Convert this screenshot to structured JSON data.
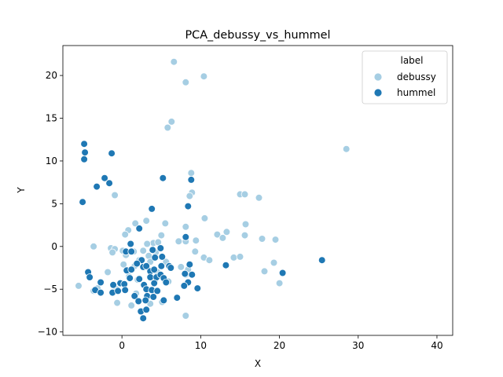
{
  "chart_data": {
    "type": "scatter",
    "title": "PCA_debussy_vs_hummel",
    "xlabel": "X",
    "ylabel": "Y",
    "xlim": [
      -7.5,
      42
    ],
    "ylim": [
      -10.4,
      23.5
    ],
    "xticks": [
      0,
      10,
      20,
      30,
      40
    ],
    "yticks": [
      -10,
      -5,
      0,
      5,
      10,
      15,
      20
    ],
    "grid": false,
    "legend": {
      "title": "label",
      "placement": "top-right"
    },
    "series": [
      {
        "name": "debussy",
        "color": "#a6cee3",
        "points": [
          [
            6.6,
            21.6
          ],
          [
            8.1,
            19.2
          ],
          [
            10.4,
            19.9
          ],
          [
            6.3,
            14.6
          ],
          [
            5.8,
            13.9
          ],
          [
            28.5,
            11.4
          ],
          [
            8.8,
            8.6
          ],
          [
            8.9,
            6.3
          ],
          [
            8.6,
            5.9
          ],
          [
            -0.9,
            6.0
          ],
          [
            15.0,
            6.1
          ],
          [
            15.6,
            6.1
          ],
          [
            17.4,
            5.7
          ],
          [
            10.5,
            3.3
          ],
          [
            3.1,
            3.0
          ],
          [
            1.7,
            2.7
          ],
          [
            5.5,
            2.7
          ],
          [
            15.7,
            2.6
          ],
          [
            8.1,
            2.3
          ],
          [
            0.8,
            1.9
          ],
          [
            12.1,
            1.4
          ],
          [
            13.3,
            1.7
          ],
          [
            0.4,
            1.4
          ],
          [
            5.0,
            1.3
          ],
          [
            15.6,
            1.3
          ],
          [
            12.8,
            1.0
          ],
          [
            17.8,
            0.9
          ],
          [
            19.5,
            0.8
          ],
          [
            8.1,
            0.6
          ],
          [
            9.4,
            0.7
          ],
          [
            4.0,
            0.4
          ],
          [
            4.6,
            0.5
          ],
          [
            7.2,
            0.6
          ],
          [
            3.2,
            0.3
          ],
          [
            -1.4,
            -0.2
          ],
          [
            -0.9,
            -0.3
          ],
          [
            -3.6,
            0.0
          ],
          [
            0.1,
            -0.5
          ],
          [
            -1.2,
            -0.7
          ],
          [
            1.5,
            -0.6
          ],
          [
            2.7,
            -0.5
          ],
          [
            4.3,
            -0.7
          ],
          [
            9.3,
            -0.6
          ],
          [
            0.5,
            -1.0
          ],
          [
            3.4,
            -1.1
          ],
          [
            10.4,
            -1.3
          ],
          [
            11.1,
            -1.6
          ],
          [
            14.2,
            -1.3
          ],
          [
            15.0,
            -1.2
          ],
          [
            19.3,
            -1.9
          ],
          [
            2.2,
            -1.6
          ],
          [
            3.6,
            -1.8
          ],
          [
            5.6,
            -1.8
          ],
          [
            0.2,
            -2.1
          ],
          [
            1.6,
            -2.3
          ],
          [
            7.5,
            -2.4
          ],
          [
            8.4,
            -2.7
          ],
          [
            3.8,
            -2.8
          ],
          [
            4.5,
            -3.0
          ],
          [
            8.1,
            -3.3
          ],
          [
            18.1,
            -2.9
          ],
          [
            -1.8,
            -3.0
          ],
          [
            0.9,
            -3.5
          ],
          [
            2.0,
            -3.9
          ],
          [
            4.2,
            -4.0
          ],
          [
            5.9,
            -4.1
          ],
          [
            20.0,
            -4.3
          ],
          [
            -5.5,
            -4.6
          ],
          [
            -3.1,
            -4.9
          ],
          [
            -3.6,
            -5.2
          ],
          [
            -0.7,
            -5.0
          ],
          [
            1.8,
            -5.5
          ],
          [
            -0.6,
            -6.6
          ],
          [
            1.2,
            -6.9
          ],
          [
            3.6,
            -6.7
          ],
          [
            5.1,
            -6.5
          ],
          [
            8.1,
            -8.1
          ]
        ]
      },
      {
        "name": "hummel",
        "color": "#1f78b4",
        "points": [
          [
            -4.8,
            12.0
          ],
          [
            -4.7,
            11.0
          ],
          [
            -4.8,
            10.2
          ],
          [
            -1.3,
            10.9
          ],
          [
            5.2,
            8.0
          ],
          [
            -2.2,
            8.0
          ],
          [
            8.8,
            7.8
          ],
          [
            -1.6,
            7.4
          ],
          [
            -3.2,
            7.0
          ],
          [
            -5.0,
            5.2
          ],
          [
            8.4,
            4.7
          ],
          [
            3.8,
            4.4
          ],
          [
            2.2,
            2.1
          ],
          [
            8.1,
            1.1
          ],
          [
            1.1,
            0.3
          ],
          [
            0.5,
            -0.6
          ],
          [
            1.2,
            -0.6
          ],
          [
            3.9,
            -0.4
          ],
          [
            4.9,
            -0.2
          ],
          [
            4.2,
            -1.3
          ],
          [
            5.1,
            -1.2
          ],
          [
            2.5,
            -1.6
          ],
          [
            1.9,
            -2.0
          ],
          [
            2.7,
            -2.4
          ],
          [
            3.1,
            -2.3
          ],
          [
            5.0,
            -2.3
          ],
          [
            6.0,
            -2.3
          ],
          [
            6.2,
            -2.5
          ],
          [
            8.6,
            -2.1
          ],
          [
            13.2,
            -2.2
          ],
          [
            25.4,
            -1.6
          ],
          [
            0.6,
            -2.8
          ],
          [
            1.2,
            -2.7
          ],
          [
            3.6,
            -2.9
          ],
          [
            4.1,
            -2.7
          ],
          [
            8.0,
            -3.2
          ],
          [
            8.9,
            -3.3
          ],
          [
            20.4,
            -3.1
          ],
          [
            -4.3,
            -3.0
          ],
          [
            -4.1,
            -3.6
          ],
          [
            1.0,
            -3.7
          ],
          [
            2.2,
            -3.8
          ],
          [
            3.6,
            -3.6
          ],
          [
            4.4,
            -3.6
          ],
          [
            4.9,
            -3.3
          ],
          [
            5.3,
            -3.7
          ],
          [
            -2.7,
            -4.2
          ],
          [
            -1.1,
            -4.5
          ],
          [
            -0.2,
            -4.3
          ],
          [
            0.3,
            -4.4
          ],
          [
            2.8,
            -4.5
          ],
          [
            4.1,
            -4.3
          ],
          [
            5.6,
            -4.2
          ],
          [
            8.4,
            -4.2
          ],
          [
            9.6,
            -4.9
          ],
          [
            -3.4,
            -5.1
          ],
          [
            -2.7,
            -5.4
          ],
          [
            -1.2,
            -5.4
          ],
          [
            -0.5,
            -5.2
          ],
          [
            0.4,
            -5.1
          ],
          [
            3.1,
            -5.0
          ],
          [
            3.8,
            -5.1
          ],
          [
            4.5,
            -5.2
          ],
          [
            7.9,
            -4.6
          ],
          [
            1.6,
            -5.8
          ],
          [
            3.2,
            -5.8
          ],
          [
            4.0,
            -5.9
          ],
          [
            7.0,
            -6.0
          ],
          [
            2.1,
            -6.4
          ],
          [
            3.0,
            -6.3
          ],
          [
            5.3,
            -6.3
          ],
          [
            2.4,
            -7.6
          ],
          [
            3.1,
            -7.4
          ],
          [
            2.7,
            -8.4
          ]
        ]
      }
    ]
  }
}
